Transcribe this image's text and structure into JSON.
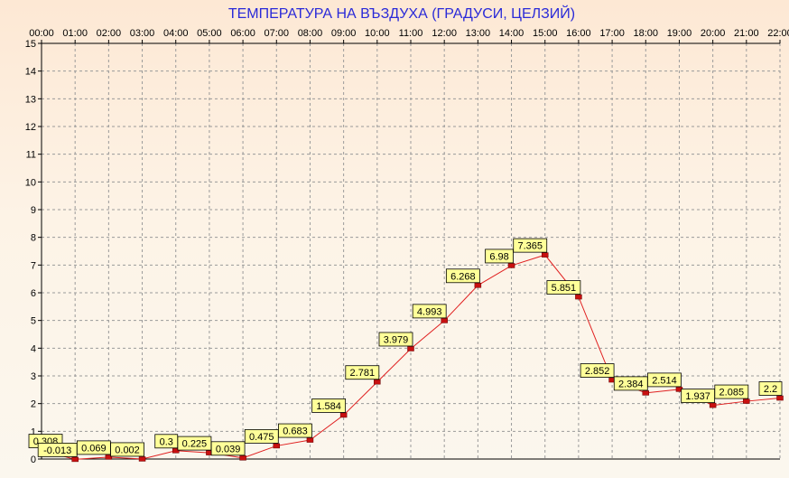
{
  "chart_data": {
    "type": "line",
    "title": "ТЕМПЕРАТУРА НА ВЪЗДУХА  (ГРАДУСИ, ЦЕЛЗИЙ)",
    "categories": [
      "00:00",
      "01:00",
      "02:00",
      "03:00",
      "04:00",
      "05:00",
      "06:00",
      "07:00",
      "08:00",
      "09:00",
      "10:00",
      "11:00",
      "12:00",
      "13:00",
      "14:00",
      "15:00",
      "16:00",
      "17:00",
      "18:00",
      "19:00",
      "20:00",
      "21:00",
      "22:00"
    ],
    "values": [
      0.308,
      -0.013,
      0.069,
      0.002,
      0.3,
      0.225,
      0.039,
      0.475,
      0.683,
      1.584,
      2.781,
      3.979,
      4.993,
      6.268,
      6.98,
      7.365,
      5.851,
      2.852,
      2.384,
      2.514,
      1.937,
      2.085,
      2.2
    ],
    "labels": [
      "0.308",
      "-0.013",
      "0.069",
      "0.002",
      "0.3",
      "0.225",
      "0.039",
      "0.475",
      "0.683",
      "1.584",
      "2.781",
      "3.979",
      "4.993",
      "6.268",
      "6.98",
      "7.365",
      "5.851",
      "2.852",
      "2.384",
      "2.514",
      "1.937",
      "2.085",
      "2.2"
    ],
    "ylim": [
      0,
      15
    ],
    "yticks": [
      "0",
      "1",
      "2",
      "3",
      "4",
      "5",
      "6",
      "7",
      "8",
      "9",
      "10",
      "11",
      "12",
      "13",
      "14",
      "15"
    ],
    "grid": true,
    "colors": {
      "line": "#e02020",
      "marker": "#c81010",
      "label_bg": "#ffff99",
      "title": "#2a2ad8",
      "grid": "#9a9a9a"
    }
  }
}
